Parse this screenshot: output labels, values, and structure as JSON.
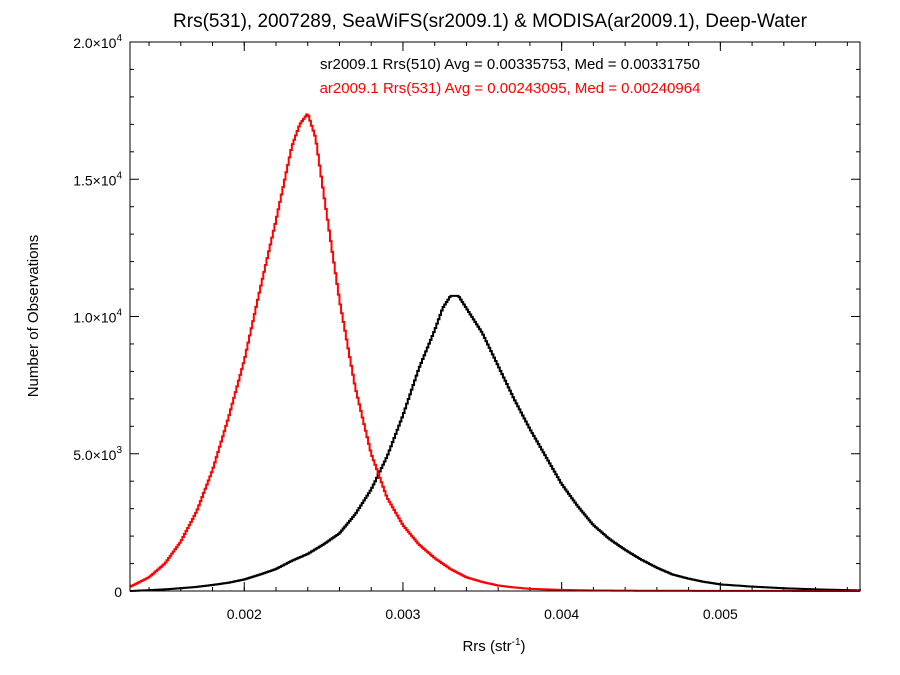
{
  "chart_data": {
    "type": "line",
    "title": "Rrs(531), 2007289, SeaWiFS(sr2009.1) & MODISA(ar2009.1), Deep-Water",
    "xlabel": {
      "base": "Rrs (str",
      "sup": "-1",
      "end": ")"
    },
    "ylabel": "Number of Observations",
    "xlim": [
      0.00128,
      0.00588
    ],
    "ylim": [
      0,
      20000
    ],
    "grid": false,
    "x_ticks": [
      {
        "value": 0.002,
        "label": "0.002"
      },
      {
        "value": 0.003,
        "label": "0.003"
      },
      {
        "value": 0.004,
        "label": "0.004"
      },
      {
        "value": 0.005,
        "label": "0.005"
      }
    ],
    "y_ticks": [
      {
        "value": 0,
        "mant": "0",
        "exp": ""
      },
      {
        "value": 5000,
        "mant": "5.0×10",
        "exp": "3"
      },
      {
        "value": 10000,
        "mant": "1.0×10",
        "exp": "4"
      },
      {
        "value": 15000,
        "mant": "1.5×10",
        "exp": "4"
      },
      {
        "value": 20000,
        "mant": "2.0×10",
        "exp": "4"
      }
    ],
    "annotations": [
      {
        "text": "sr2009.1 Rrs(510) Avg = 0.00335753, Med = 0.00331750",
        "color": "#000000"
      },
      {
        "text": "ar2009.1 Rrs(531) Avg = 0.00243095, Med = 0.00240964",
        "color": "#ff0000"
      }
    ],
    "series": [
      {
        "color": "#000000",
        "x": [
          0.00128,
          0.0014,
          0.0015,
          0.0016,
          0.0017,
          0.0018,
          0.0019,
          0.002,
          0.0021,
          0.0022,
          0.0023,
          0.0024,
          0.0025,
          0.0026,
          0.0027,
          0.0028,
          0.0029,
          0.003,
          0.0031,
          0.0032,
          0.00325,
          0.0033,
          0.00335,
          0.0034,
          0.0035,
          0.0036,
          0.0037,
          0.0038,
          0.0039,
          0.004,
          0.0041,
          0.0042,
          0.0043,
          0.0044,
          0.0045,
          0.0046,
          0.0047,
          0.0048,
          0.0049,
          0.005,
          0.0052,
          0.0054,
          0.0056,
          0.00588
        ],
        "y": [
          0,
          30,
          60,
          100,
          150,
          220,
          300,
          420,
          600,
          800,
          1100,
          1350,
          1700,
          2100,
          2800,
          3700,
          4900,
          6400,
          8100,
          9500,
          10300,
          10750,
          10750,
          10300,
          9400,
          8200,
          7000,
          5900,
          4900,
          3900,
          3100,
          2400,
          1900,
          1500,
          1150,
          850,
          600,
          450,
          330,
          240,
          160,
          100,
          60,
          20
        ]
      },
      {
        "color": "#ff0000",
        "x": [
          0.00128,
          0.0014,
          0.0015,
          0.0016,
          0.0017,
          0.0018,
          0.0019,
          0.002,
          0.0021,
          0.0022,
          0.0023,
          0.00235,
          0.0024,
          0.00245,
          0.0025,
          0.0026,
          0.0027,
          0.0028,
          0.0029,
          0.003,
          0.0031,
          0.0032,
          0.0033,
          0.0034,
          0.0035,
          0.0036,
          0.0037,
          0.0038,
          0.004,
          0.0042,
          0.0045,
          0.005,
          0.00588
        ],
        "y": [
          150,
          500,
          1000,
          1800,
          2900,
          4400,
          6300,
          8400,
          11000,
          13500,
          16200,
          17000,
          17400,
          16500,
          14500,
          10600,
          7400,
          5000,
          3400,
          2400,
          1700,
          1200,
          800,
          500,
          330,
          200,
          130,
          80,
          40,
          20,
          10,
          5,
          0
        ]
      }
    ]
  }
}
